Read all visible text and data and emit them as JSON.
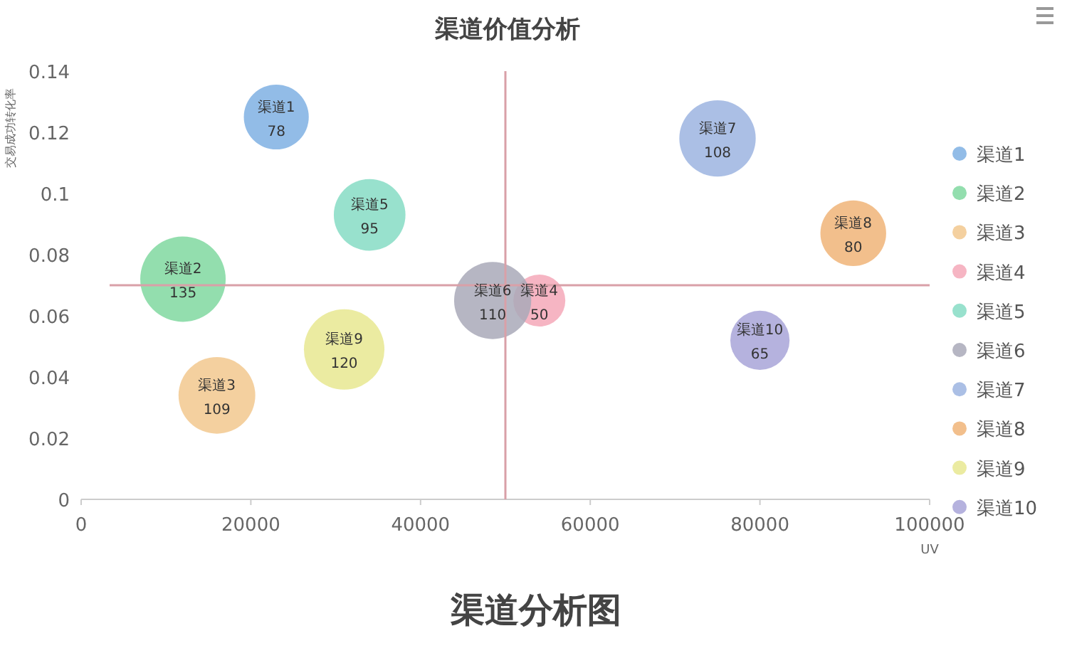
{
  "chart_data": {
    "type": "bubble",
    "title": "渠道价值分析",
    "xlabel": "UV",
    "ylabel": "交易成功转化率",
    "xlim": [
      0,
      100000
    ],
    "xticks": [
      0,
      20000,
      40000,
      60000,
      80000,
      100000
    ],
    "ylim": [
      0,
      0.14
    ],
    "yticks": [
      0,
      0.02,
      0.04,
      0.06,
      0.08,
      0.1,
      0.12,
      0.14
    ],
    "grid": false,
    "legend": "right",
    "marker": "circle",
    "ref_lines": [
      {
        "axis": "x",
        "value": 50000,
        "color": "#d9a0a8"
      },
      {
        "axis": "y",
        "value": 0.07,
        "color": "#d9a0a8"
      }
    ],
    "annotations": [
      "渠道分析图"
    ],
    "series": [
      {
        "name": "渠道1",
        "color": "#7fb0e3",
        "x": [
          23000
        ],
        "values": [
          0.125
        ],
        "sizes": [
          78
        ],
        "value_labels": [
          "78"
        ]
      },
      {
        "name": "渠道2",
        "color": "#80d8a0",
        "x": [
          12000
        ],
        "values": [
          0.072
        ],
        "sizes": [
          135
        ],
        "value_labels": [
          "135"
        ]
      },
      {
        "name": "渠道3",
        "color": "#f2c88e",
        "x": [
          16000
        ],
        "values": [
          0.034
        ],
        "sizes": [
          109
        ],
        "value_labels": [
          "109"
        ]
      },
      {
        "name": "渠道4",
        "color": "#f4a8b8",
        "x": [
          54000
        ],
        "values": [
          0.065
        ],
        "sizes": [
          50
        ],
        "value_labels": [
          "50"
        ]
      },
      {
        "name": "渠道5",
        "color": "#86dcc4",
        "x": [
          34000
        ],
        "values": [
          0.093
        ],
        "sizes": [
          95
        ],
        "value_labels": [
          "95"
        ]
      },
      {
        "name": "渠道6",
        "color": "#a9a9b8",
        "x": [
          48500
        ],
        "values": [
          0.065
        ],
        "sizes": [
          110
        ],
        "value_labels": [
          "110"
        ]
      },
      {
        "name": "渠道7",
        "color": "#9cb4e0",
        "x": [
          75000
        ],
        "values": [
          0.118
        ],
        "sizes": [
          108
        ],
        "value_labels": [
          "108"
        ]
      },
      {
        "name": "渠道8",
        "color": "#f0b478",
        "x": [
          91000
        ],
        "values": [
          0.087
        ],
        "sizes": [
          80
        ],
        "value_labels": [
          "80"
        ]
      },
      {
        "name": "渠道9",
        "color": "#e8e890",
        "x": [
          31000
        ],
        "values": [
          0.049
        ],
        "sizes": [
          120
        ],
        "value_labels": [
          "120"
        ]
      },
      {
        "name": "渠道10",
        "color": "#a8a4d8",
        "x": [
          80000
        ],
        "values": [
          0.052
        ],
        "sizes": [
          65
        ],
        "value_labels": [
          "65"
        ]
      }
    ]
  }
}
